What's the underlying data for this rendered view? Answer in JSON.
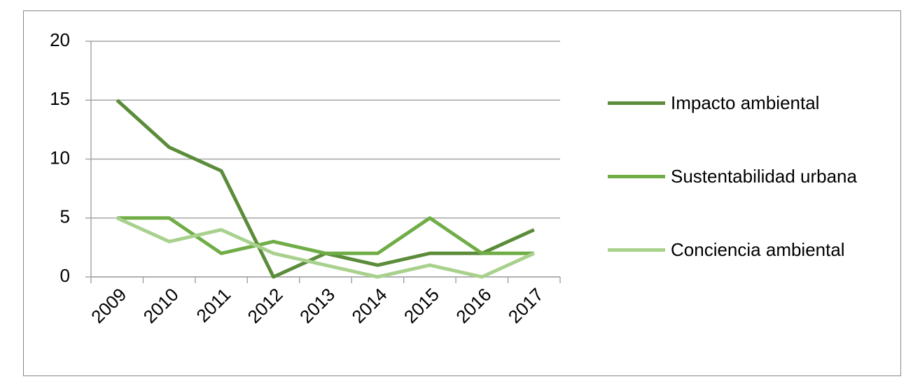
{
  "chart_data": {
    "type": "line",
    "categories": [
      "2009",
      "2010",
      "2011",
      "2012",
      "2013",
      "2014",
      "2015",
      "2016",
      "2017"
    ],
    "series": [
      {
        "name": "Impacto ambiental",
        "color": "#5b8c3a",
        "values": [
          15,
          11,
          9,
          0,
          2,
          1,
          2,
          2,
          4
        ]
      },
      {
        "name": "Sustentabilidad urbana",
        "color": "#70ad47",
        "values": [
          5,
          5,
          2,
          3,
          2,
          2,
          5,
          2,
          2
        ]
      },
      {
        "name": "Conciencia ambiental",
        "color": "#a9d18e",
        "values": [
          5,
          3,
          4,
          2,
          1,
          0,
          1,
          0,
          2
        ]
      }
    ],
    "ylim": [
      0,
      20
    ],
    "yticks": [
      0,
      5,
      10,
      15,
      20
    ],
    "grid": true,
    "legend": "right"
  }
}
